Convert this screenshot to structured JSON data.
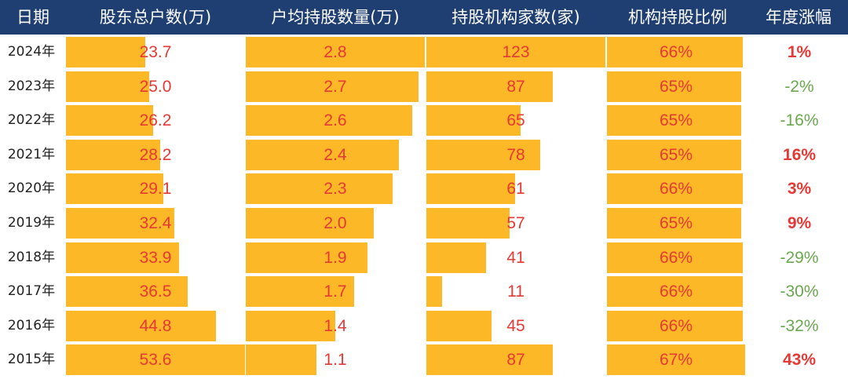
{
  "chart_data": {
    "type": "table",
    "columns": [
      "日期",
      "股东总户数(万)",
      "户均持股数量(万)",
      "持股机构家数(家)",
      "机构持股比例",
      "年度涨幅"
    ],
    "rows": [
      {
        "date": "2024年",
        "holders": 23.7,
        "holders_label": "23.7",
        "avg": 2.8,
        "avg_label": "2.8",
        "inst": 123,
        "inst_label": "123",
        "ratio": 66,
        "ratio_label": "66%",
        "change": 1,
        "change_label": "1%"
      },
      {
        "date": "2023年",
        "holders": 25.0,
        "holders_label": "25.0",
        "avg": 2.7,
        "avg_label": "2.7",
        "inst": 87,
        "inst_label": "87",
        "ratio": 65,
        "ratio_label": "65%",
        "change": -2,
        "change_label": "-2%"
      },
      {
        "date": "2022年",
        "holders": 26.2,
        "holders_label": "26.2",
        "avg": 2.6,
        "avg_label": "2.6",
        "inst": 65,
        "inst_label": "65",
        "ratio": 65,
        "ratio_label": "65%",
        "change": -16,
        "change_label": "-16%"
      },
      {
        "date": "2021年",
        "holders": 28.2,
        "holders_label": "28.2",
        "avg": 2.4,
        "avg_label": "2.4",
        "inst": 78,
        "inst_label": "78",
        "ratio": 65,
        "ratio_label": "65%",
        "change": 16,
        "change_label": "16%"
      },
      {
        "date": "2020年",
        "holders": 29.1,
        "holders_label": "29.1",
        "avg": 2.3,
        "avg_label": "2.3",
        "inst": 61,
        "inst_label": "61",
        "ratio": 66,
        "ratio_label": "66%",
        "change": 3,
        "change_label": "3%"
      },
      {
        "date": "2019年",
        "holders": 32.4,
        "holders_label": "32.4",
        "avg": 2.0,
        "avg_label": "2.0",
        "inst": 57,
        "inst_label": "57",
        "ratio": 65,
        "ratio_label": "65%",
        "change": 9,
        "change_label": "9%"
      },
      {
        "date": "2018年",
        "holders": 33.9,
        "holders_label": "33.9",
        "avg": 1.9,
        "avg_label": "1.9",
        "inst": 41,
        "inst_label": "41",
        "ratio": 66,
        "ratio_label": "66%",
        "change": -29,
        "change_label": "-29%"
      },
      {
        "date": "2017年",
        "holders": 36.5,
        "holders_label": "36.5",
        "avg": 1.7,
        "avg_label": "1.7",
        "inst": 11,
        "inst_label": "11",
        "ratio": 66,
        "ratio_label": "66%",
        "change": -30,
        "change_label": "-30%"
      },
      {
        "date": "2016年",
        "holders": 44.8,
        "holders_label": "44.8",
        "avg": 1.4,
        "avg_label": "1.4",
        "inst": 45,
        "inst_label": "45",
        "ratio": 66,
        "ratio_label": "66%",
        "change": -32,
        "change_label": "-32%"
      },
      {
        "date": "2015年",
        "holders": 53.6,
        "holders_label": "53.6",
        "avg": 1.1,
        "avg_label": "1.1",
        "inst": 87,
        "inst_label": "87",
        "ratio": 67,
        "ratio_label": "67%",
        "change": 43,
        "change_label": "43%"
      }
    ],
    "colors": {
      "header_bg": "#1f3f73",
      "header_text": "#ffffff",
      "bar": "#fdb827",
      "value_text": "#e53935",
      "positive_change": "#e53935",
      "negative_change": "#6aa84f"
    }
  }
}
